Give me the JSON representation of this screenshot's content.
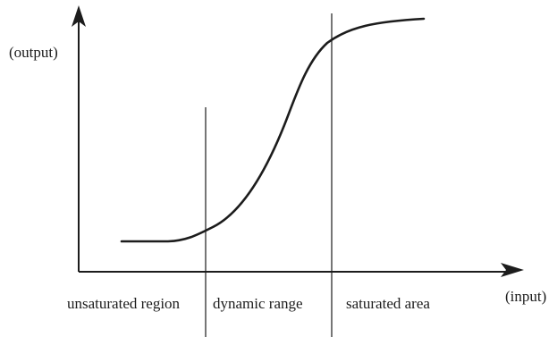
{
  "axes": {
    "y_label": "(output)",
    "x_label": "(input)"
  },
  "regions": [
    {
      "label": "unsaturated region"
    },
    {
      "label": "dynamic range"
    },
    {
      "label": "saturated area"
    }
  ],
  "colors": {
    "ink": "#1c1c1c",
    "background": "#ffffff"
  }
}
